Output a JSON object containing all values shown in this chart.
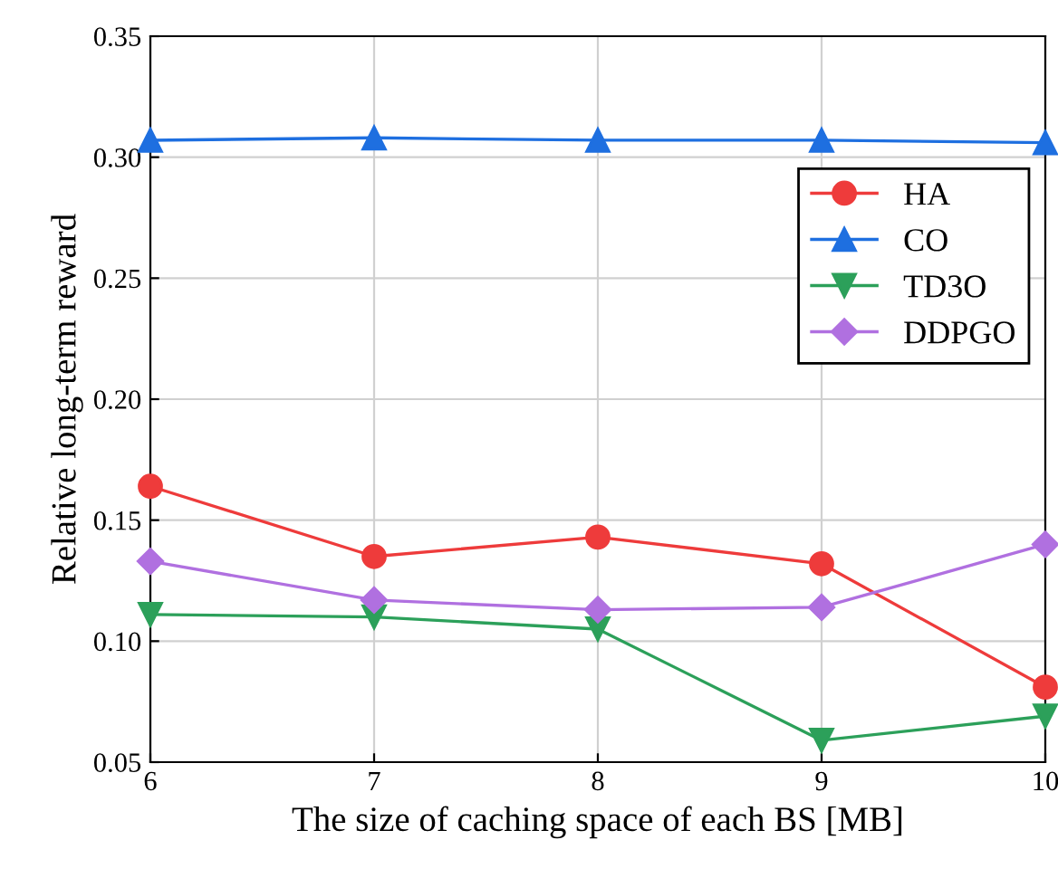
{
  "chart_data": {
    "type": "line",
    "xlabel": "The size of caching space of each BS [MB]",
    "ylabel": "Relative long-term reward",
    "x": [
      6,
      7,
      8,
      9,
      10
    ],
    "series": [
      {
        "name": "HA",
        "color": "#ee3b3b",
        "marker": "circle",
        "values": [
          0.164,
          0.135,
          0.143,
          0.132,
          0.081
        ]
      },
      {
        "name": "CO",
        "color": "#1e6fe0",
        "marker": "triangle",
        "values": [
          0.307,
          0.308,
          0.307,
          0.307,
          0.306
        ]
      },
      {
        "name": "TD3O",
        "color": "#2ca05a",
        "marker": "triangle_down",
        "values": [
          0.111,
          0.11,
          0.105,
          0.059,
          0.069
        ]
      },
      {
        "name": "DDPGO",
        "color": "#b070e0",
        "marker": "diamond",
        "values": [
          0.133,
          0.117,
          0.113,
          0.114,
          0.14
        ]
      }
    ],
    "xlim": [
      6,
      10
    ],
    "xticks": [
      6,
      7,
      8,
      9,
      10
    ],
    "ylim": [
      0.05,
      0.35
    ],
    "yticks": [
      {
        "value": 0.05,
        "label": "0.05"
      },
      {
        "value": 0.1,
        "label": "0.10"
      },
      {
        "value": 0.15,
        "label": "0.15"
      },
      {
        "value": 0.2,
        "label": "0.20"
      },
      {
        "value": 0.25,
        "label": "0.25"
      },
      {
        "value": 0.3,
        "label": "0.30"
      },
      {
        "value": 0.35,
        "label": "0.35"
      }
    ],
    "grid": true,
    "legend": "top right",
    "line_style": "solid"
  }
}
